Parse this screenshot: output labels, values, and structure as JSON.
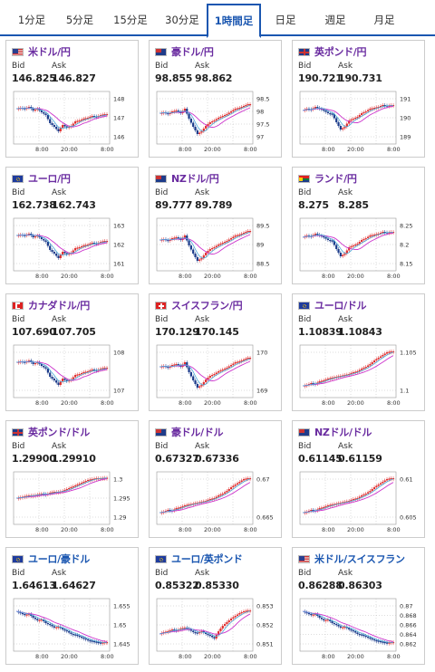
{
  "tabs": [
    "1分足",
    "5分足",
    "15分足",
    "30分足",
    "1時間足",
    "日足",
    "週足",
    "月足"
  ],
  "active_tab": "1時間足",
  "labels": {
    "bid": "Bid",
    "ask": "Ask"
  },
  "xticks": [
    "8:00",
    "20:00",
    "8:00"
  ],
  "colors": {
    "up": "#e03030",
    "down": "#1a3a8a",
    "ma": "#cc33cc",
    "ma_fast": "#4aa8d8",
    "accent": "#1a56b0",
    "pair": "#6a2ca0"
  },
  "cards": [
    {
      "pair": "米ドル/円",
      "flag": "us-jp",
      "bid": "146.825",
      "ask": "146.827",
      "yticks": [
        "148",
        "147",
        "146"
      ]
    },
    {
      "pair": "豪ドル/円",
      "flag": "au-jp",
      "bid": "98.855",
      "ask": "98.862",
      "yticks": [
        "98.5",
        "98",
        "97.5",
        "97"
      ]
    },
    {
      "pair": "英ポンド/円",
      "flag": "gb-jp",
      "bid": "190.721",
      "ask": "190.731",
      "yticks": [
        "191",
        "190",
        "189"
      ]
    },
    {
      "pair": "ユーロ/円",
      "flag": "eu-jp",
      "bid": "162.738",
      "ask": "162.743",
      "yticks": [
        "163",
        "162",
        "161"
      ]
    },
    {
      "pair": "NZドル/円",
      "flag": "nz-jp",
      "bid": "89.777",
      "ask": "89.789",
      "yticks": [
        "89.5",
        "89",
        "88.5"
      ]
    },
    {
      "pair": "ランド/円",
      "flag": "za-jp",
      "bid": "8.275",
      "ask": "8.285",
      "yticks": [
        "8.25",
        "8.2",
        "8.15"
      ]
    },
    {
      "pair": "カナダドル/円",
      "flag": "ca-jp",
      "bid": "107.690",
      "ask": "107.705",
      "yticks": [
        "108",
        "107"
      ]
    },
    {
      "pair": "スイスフラン/円",
      "flag": "ch-jp",
      "bid": "170.129",
      "ask": "170.145",
      "yticks": [
        "170",
        "169"
      ]
    },
    {
      "pair": "ユーロ/ドル",
      "flag": "eu-us",
      "bid": "1.10839",
      "ask": "1.10843",
      "yticks": [
        "1.105",
        "1.1"
      ]
    },
    {
      "pair": "英ポンド/ドル",
      "flag": "gb-us",
      "bid": "1.29900",
      "ask": "1.29910",
      "yticks": [
        "1.3",
        "1.295",
        "1.29"
      ]
    },
    {
      "pair": "豪ドル/ドル",
      "flag": "au-us",
      "bid": "0.67327",
      "ask": "0.67336",
      "yticks": [
        "0.67",
        "0.665"
      ]
    },
    {
      "pair": "NZドル/ドル",
      "flag": "nz-us",
      "bid": "0.61145",
      "ask": "0.61159",
      "yticks": [
        "0.61",
        "0.605"
      ]
    },
    {
      "pair": "ユーロ/豪ドル",
      "flag": "eu-au",
      "bid": "1.64613",
      "ask": "1.64627",
      "yticks": [
        "1.655",
        "1.65",
        "1.645"
      ]
    },
    {
      "pair": "ユーロ/英ポンド",
      "flag": "eu-gb",
      "bid": "0.85322",
      "ask": "0.85330",
      "yticks": [
        "0.853",
        "0.852",
        "0.851"
      ]
    },
    {
      "pair": "米ドル/スイスフラン",
      "flag": "us-ch",
      "bid": "0.86288",
      "ask": "0.86303",
      "yticks": [
        "0.87",
        "0.868",
        "0.866",
        "0.864",
        "0.862"
      ]
    }
  ]
}
